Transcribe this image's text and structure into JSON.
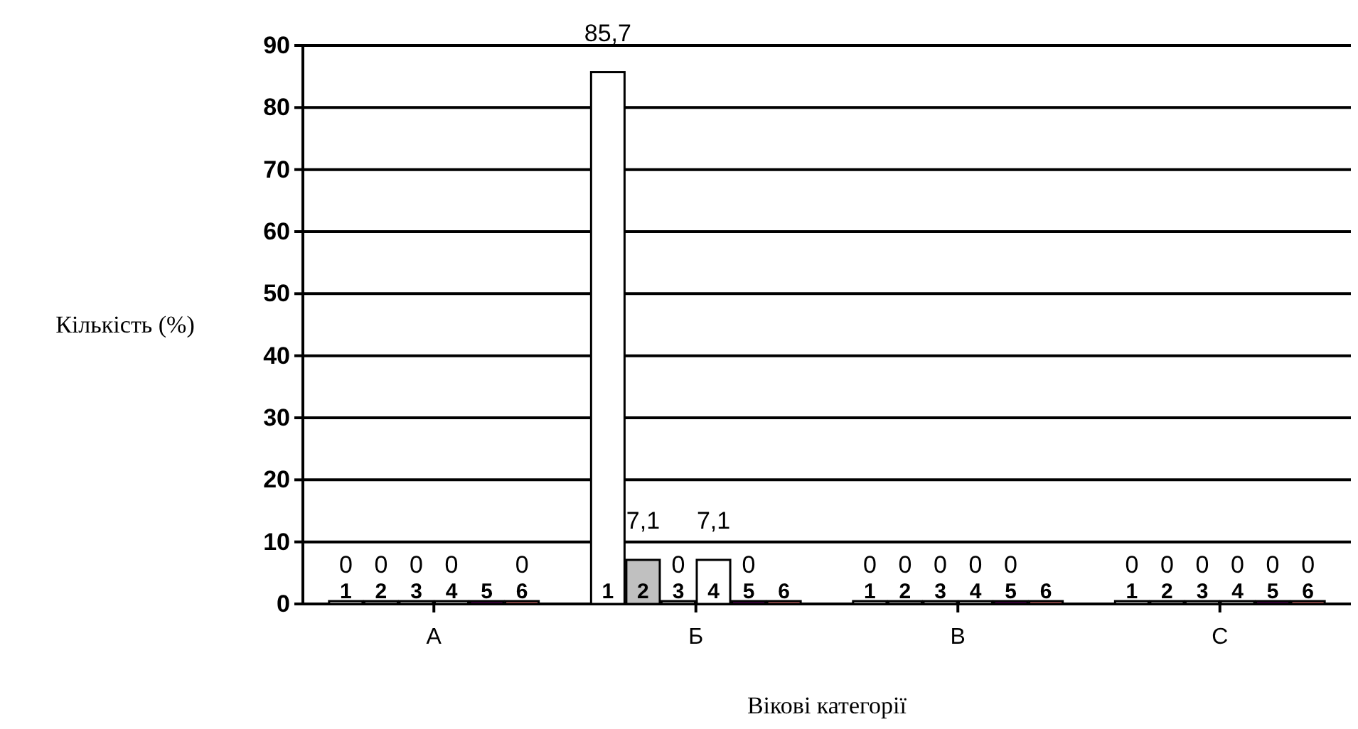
{
  "chart_data": {
    "type": "bar",
    "categories": [
      "A",
      "Б",
      "В",
      "С"
    ],
    "xlabel": "Вікові категорії",
    "ylabel": "Кількість (%)",
    "ylim": [
      0,
      90
    ],
    "yticks": [
      0,
      10,
      20,
      30,
      40,
      50,
      60,
      70,
      80,
      90
    ],
    "grid": "y",
    "series": [
      {
        "name": "1",
        "color": "#ffffff",
        "values": [
          0,
          85.7,
          0,
          0
        ],
        "value_labels": [
          "0",
          "85,7",
          "0",
          "0"
        ]
      },
      {
        "name": "2",
        "color": "#c0c0c0",
        "values": [
          0,
          7.1,
          0,
          0
        ],
        "value_labels": [
          "0",
          "7,1",
          "0",
          "0"
        ]
      },
      {
        "name": "3",
        "color": "#e0e0e0",
        "values": [
          0,
          0,
          0,
          0
        ],
        "value_labels": [
          "0",
          "0",
          "0",
          "0"
        ]
      },
      {
        "name": "4",
        "color": "#ffffff",
        "values": [
          0,
          7.1,
          0,
          0
        ],
        "value_labels": [
          "0",
          "7,1",
          "0",
          "0"
        ]
      },
      {
        "name": "5",
        "color": "#660066",
        "values": [
          0,
          0,
          0,
          0
        ],
        "value_labels": [
          null,
          "0",
          "0",
          "0"
        ]
      },
      {
        "name": "6",
        "color": "#ff8080",
        "values": [
          0,
          0,
          0,
          0
        ],
        "value_labels": [
          "0",
          null,
          null,
          "0"
        ]
      }
    ]
  }
}
